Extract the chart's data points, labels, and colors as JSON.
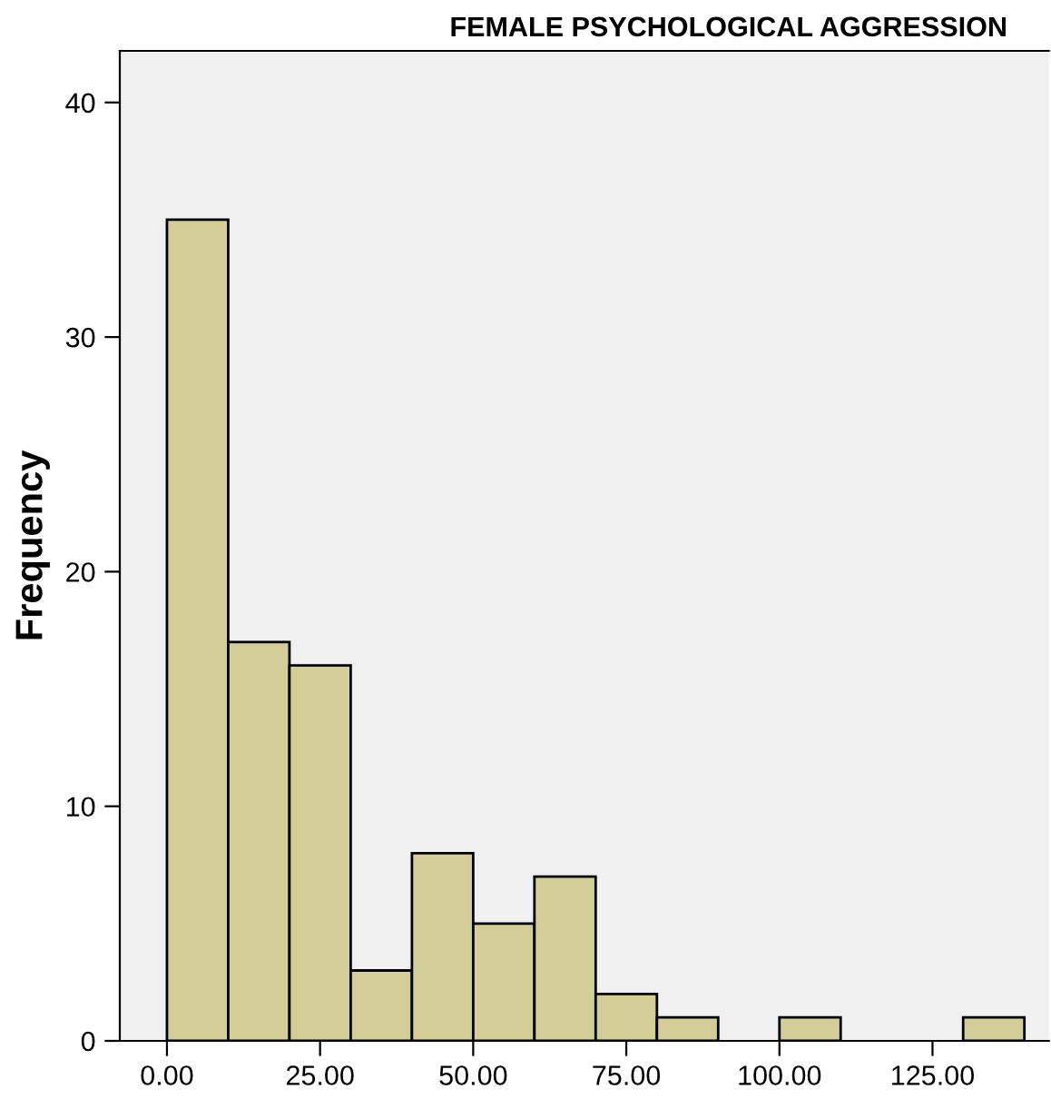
{
  "chart_data": {
    "type": "histogram",
    "title": "FEMALE PSYCHOLOGICAL AGGRESSION",
    "ylabel": "Frequency",
    "bins": [
      0,
      10,
      20,
      30,
      40,
      50,
      60,
      70,
      80,
      90,
      100,
      110,
      120,
      130,
      140
    ],
    "values": [
      35,
      17,
      16,
      3,
      8,
      5,
      7,
      2,
      1,
      0,
      1,
      0,
      0,
      1
    ],
    "color": "#d3ce97",
    "xlim": [
      -7.7,
      144
    ],
    "xticks": [
      {
        "value": 0,
        "label": "0.00"
      },
      {
        "value": 25,
        "label": "25.00"
      },
      {
        "value": 50,
        "label": "50.00"
      },
      {
        "value": 75,
        "label": "75.00"
      },
      {
        "value": 100,
        "label": "100.00"
      },
      {
        "value": 125,
        "label": "125.00"
      }
    ],
    "ylim": [
      0,
      42.2
    ],
    "yticks": [
      0,
      10,
      20,
      30,
      40
    ],
    "grid": false
  }
}
